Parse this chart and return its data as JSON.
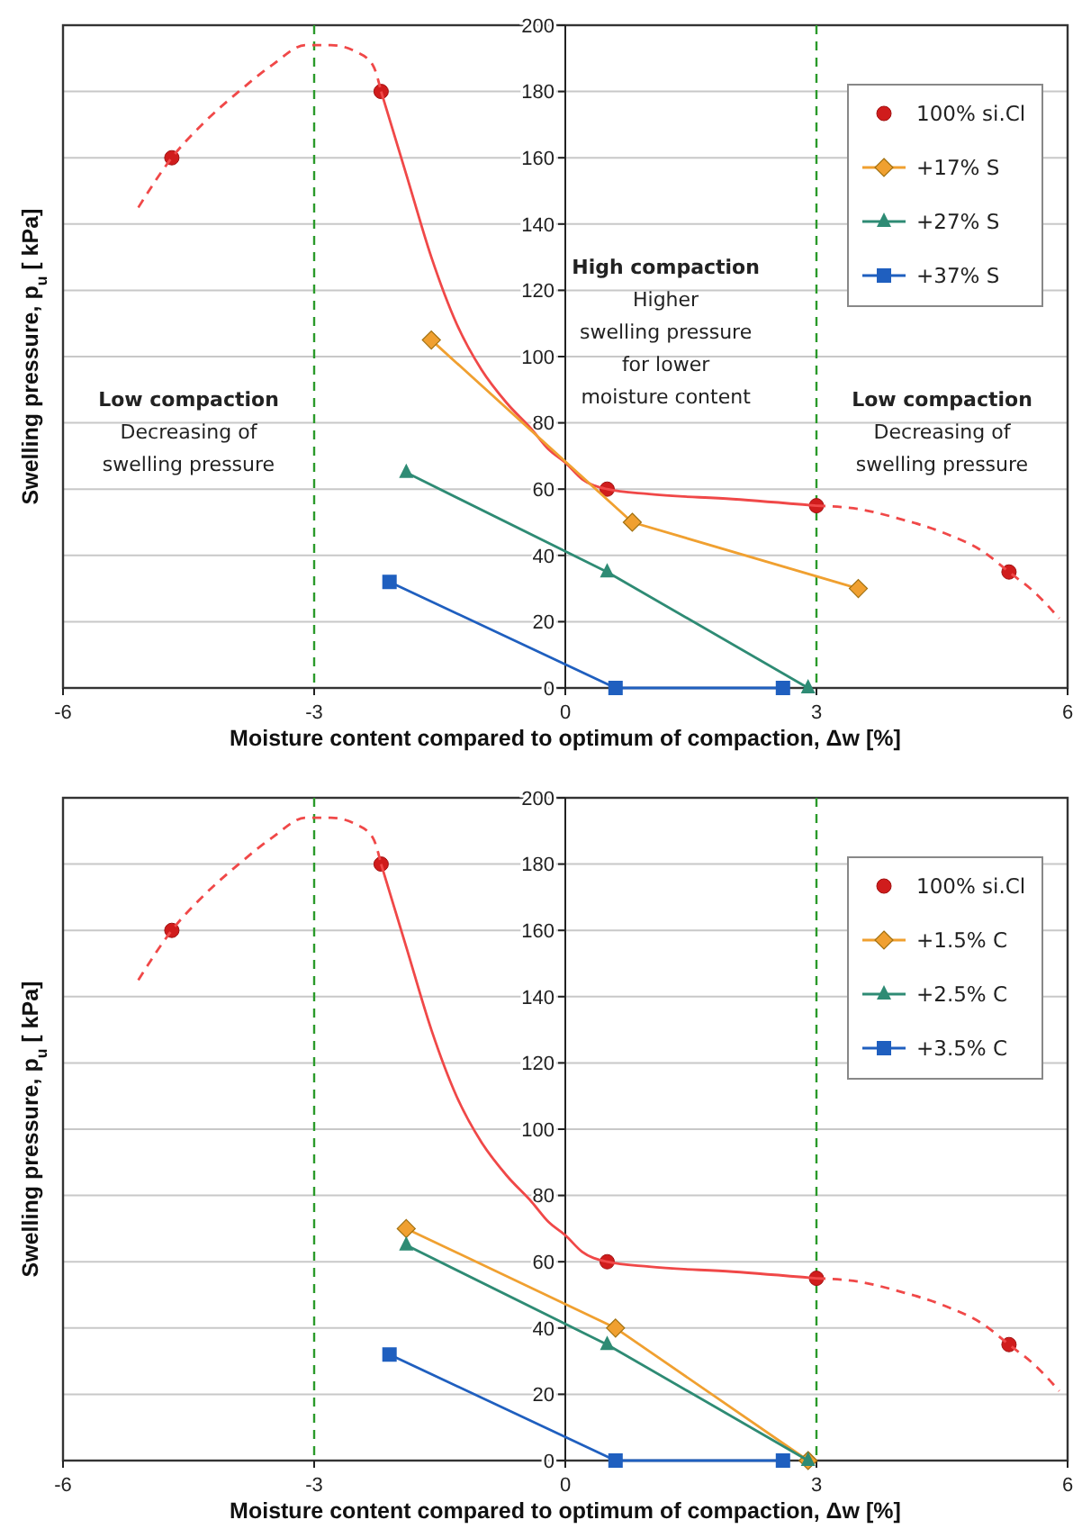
{
  "chart_data": [
    {
      "type": "line",
      "xlabel": "Moisture content compared to optimum of compaction, Δw [%]",
      "ylabel": "Swelling pressure, p$_{u}$ [ kPa]",
      "xlim": [
        -6,
        6
      ],
      "xticks": [
        -6,
        -3,
        0,
        3,
        6
      ],
      "ylim": [
        0,
        200
      ],
      "yticks": [
        0,
        20,
        40,
        60,
        80,
        100,
        120,
        140,
        160,
        180,
        200
      ],
      "grid": "y",
      "legend": "top right",
      "series": [
        {
          "name": "100% si.Cl",
          "type": "scatter",
          "marker": "circle",
          "color": "#d01c1c",
          "x": [
            -4.7,
            -2.2,
            0.5,
            3,
            5.3
          ],
          "values": [
            160,
            180,
            60,
            55,
            35
          ]
        },
        {
          "type": "line",
          "marker": "none",
          "line_style": "solid",
          "color": "#f04848",
          "x": [
            -2.2,
            -1.9,
            -1.6,
            -1.3,
            -1,
            -0.7,
            -0.4,
            -0.2,
            0,
            0.2,
            0.5,
            1,
            2,
            3
          ],
          "values": [
            180,
            155,
            130,
            110,
            96,
            86,
            78,
            72,
            68,
            63,
            60,
            58.5,
            57,
            55
          ]
        },
        {
          "type": "line",
          "marker": "none",
          "line_style": "dashed",
          "color": "#f04848",
          "x": [
            -5.1,
            -4.7,
            -4.3,
            -3.9,
            -3.5,
            -3.1,
            -2.8,
            -2.5,
            -2.3,
            -2.2
          ],
          "values": [
            145,
            160,
            171,
            180,
            188,
            194,
            194,
            192,
            188,
            180
          ]
        },
        {
          "type": "line",
          "marker": "none",
          "line_style": "dashed",
          "color": "#f04848",
          "x": [
            3,
            3.5,
            4,
            4.5,
            5,
            5.3,
            5.6,
            5.9
          ],
          "values": [
            55,
            54,
            51,
            47,
            41,
            35,
            29,
            21
          ]
        },
        {
          "name": "+17% S",
          "type": "line",
          "marker": "diamond",
          "line_style": "solid",
          "color": "#f0a030",
          "x": [
            -1.6,
            0.8,
            3.5
          ],
          "values": [
            105,
            50,
            30
          ]
        },
        {
          "name": "+27% S",
          "type": "line",
          "marker": "triangle",
          "line_style": "solid",
          "color": "#2e8b74",
          "x": [
            -1.9,
            0.5,
            2.9
          ],
          "values": [
            65,
            35,
            0
          ]
        },
        {
          "name": "+37% S",
          "type": "line",
          "marker": "square",
          "line_style": "solid",
          "color": "#1f5fbf",
          "x": [
            -2.1,
            0.6,
            2.6
          ],
          "values": [
            32,
            0,
            0
          ]
        }
      ],
      "ref_lines": [
        {
          "axis": "x",
          "value": -3,
          "color": "#2a9a2a",
          "line_style": "dashed"
        },
        {
          "axis": "x",
          "value": 3,
          "color": "#2a9a2a",
          "line_style": "dashed"
        }
      ],
      "annotations": [
        "Low compaction\nDecreasing of\nswelling pressure",
        "High compaction\nHigher\nswelling pressure\nfor lower\nmoisture content",
        "Low compaction\nDecreasing of\nswelling pressure"
      ]
    },
    {
      "type": "line",
      "xlabel": "Moisture content compared to optimum of compaction, Δw [%]",
      "ylabel": "Swelling pressure, p$_{u}$ [ kPa]",
      "xlim": [
        -6,
        6
      ],
      "xticks": [
        -6,
        -3,
        0,
        3,
        6
      ],
      "ylim": [
        0,
        200
      ],
      "yticks": [
        0,
        20,
        40,
        60,
        80,
        100,
        120,
        140,
        160,
        180,
        200
      ],
      "grid": "y",
      "legend": "top right",
      "series": [
        {
          "name": "100% si.Cl",
          "type": "scatter",
          "marker": "circle",
          "color": "#d01c1c",
          "x": [
            -4.7,
            -2.2,
            0.5,
            3,
            5.3
          ],
          "values": [
            160,
            180,
            60,
            55,
            35
          ]
        },
        {
          "type": "line",
          "marker": "none",
          "line_style": "solid",
          "color": "#f04848",
          "x": [
            -2.2,
            -1.9,
            -1.6,
            -1.3,
            -1,
            -0.7,
            -0.4,
            -0.2,
            0,
            0.2,
            0.5,
            1,
            2,
            3
          ],
          "values": [
            180,
            155,
            130,
            110,
            96,
            86,
            78,
            72,
            68,
            63,
            60,
            58.5,
            57,
            55
          ]
        },
        {
          "type": "line",
          "marker": "none",
          "line_style": "dashed",
          "color": "#f04848",
          "x": [
            -5.1,
            -4.7,
            -4.3,
            -3.9,
            -3.5,
            -3.1,
            -2.8,
            -2.5,
            -2.3,
            -2.2
          ],
          "values": [
            145,
            160,
            171,
            180,
            188,
            194,
            194,
            192,
            188,
            180
          ]
        },
        {
          "type": "line",
          "marker": "none",
          "line_style": "dashed",
          "color": "#f04848",
          "x": [
            3,
            3.5,
            4,
            4.5,
            5,
            5.3,
            5.6,
            5.9
          ],
          "values": [
            55,
            54,
            51,
            47,
            41,
            35,
            29,
            21
          ]
        },
        {
          "name": "+1.5% C",
          "type": "line",
          "marker": "diamond",
          "line_style": "solid",
          "color": "#f0a030",
          "x": [
            -1.9,
            0.6,
            2.9
          ],
          "values": [
            70,
            40,
            0
          ]
        },
        {
          "name": "+2.5% C",
          "type": "line",
          "marker": "triangle",
          "line_style": "solid",
          "color": "#2e8b74",
          "x": [
            -1.9,
            0.5,
            2.9
          ],
          "values": [
            65,
            35,
            0
          ]
        },
        {
          "name": "+3.5% C",
          "type": "line",
          "marker": "square",
          "line_style": "solid",
          "color": "#1f5fbf",
          "x": [
            -2.1,
            0.6,
            2.6
          ],
          "values": [
            32,
            0,
            0
          ]
        }
      ],
      "ref_lines": [
        {
          "axis": "x",
          "value": -3,
          "color": "#2a9a2a",
          "line_style": "dashed"
        },
        {
          "axis": "x",
          "value": 3,
          "color": "#2a9a2a",
          "line_style": "dashed"
        }
      ]
    }
  ]
}
